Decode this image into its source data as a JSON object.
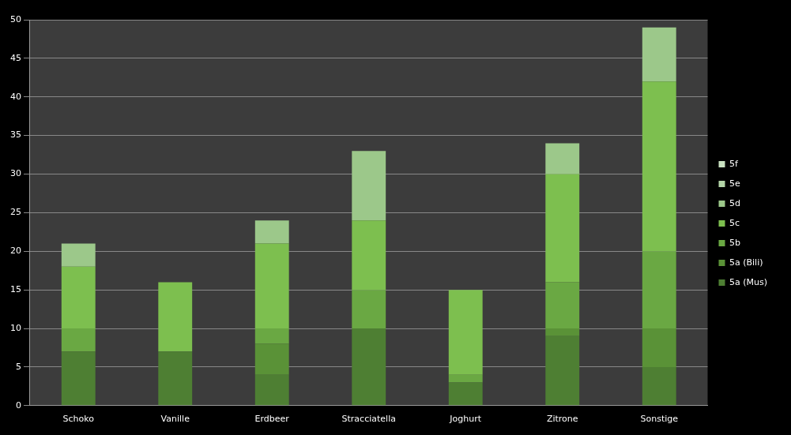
{
  "chart_data": {
    "type": "bar",
    "stacked": true,
    "categories": [
      "Schoko",
      "Vanille",
      "Erdbeer",
      "Stracciatella",
      "Joghurt",
      "Zitrone",
      "Sonstige"
    ],
    "series": [
      {
        "name": "5a (Mus)",
        "color": "#4e7f33",
        "values": [
          7,
          7,
          4,
          10,
          3,
          9,
          5
        ]
      },
      {
        "name": "5a (Bili)",
        "color": "#5a9237",
        "values": [
          0,
          0,
          4,
          0,
          0,
          1,
          5
        ]
      },
      {
        "name": "5b",
        "color": "#6aa843",
        "values": [
          3,
          0,
          2,
          5,
          1,
          6,
          10
        ]
      },
      {
        "name": "5c",
        "color": "#7dbf4f",
        "values": [
          8,
          9,
          11,
          9,
          11,
          14,
          22
        ]
      },
      {
        "name": "5d",
        "color": "#9cc88a",
        "values": [
          3,
          0,
          3,
          9,
          0,
          4,
          7
        ]
      },
      {
        "name": "5e",
        "color": "#b4d5a8",
        "values": [
          0,
          0,
          0,
          0,
          0,
          0,
          0
        ]
      },
      {
        "name": "5f",
        "color": "#c8e0c0",
        "values": [
          0,
          0,
          0,
          0,
          0,
          0,
          0
        ]
      }
    ],
    "ylim": [
      0,
      50
    ],
    "yticks": [
      0,
      5,
      10,
      15,
      20,
      25,
      30,
      35,
      40,
      45,
      50
    ],
    "grid": "y",
    "legend": "right"
  }
}
